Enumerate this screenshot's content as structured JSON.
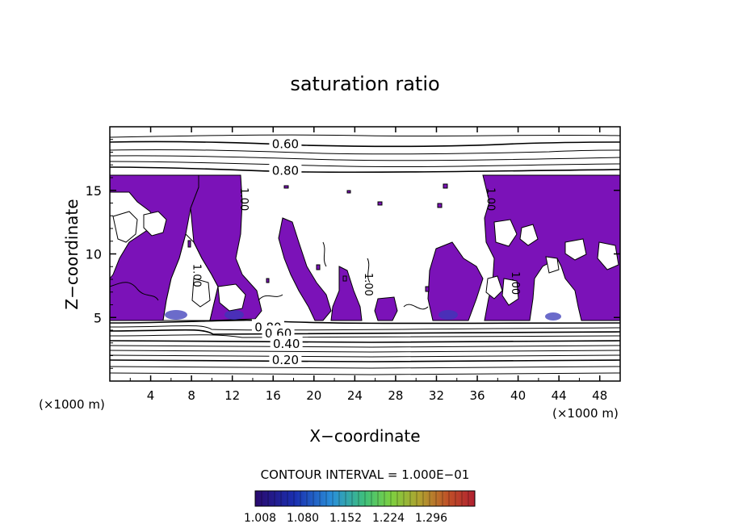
{
  "chart_data": {
    "type": "contour",
    "title": "saturation ratio",
    "xlabel": "X−coordinate",
    "ylabel": "Z−coordinate",
    "x_unit_left": "(×1000 m)",
    "x_unit_right": "(×1000 m)",
    "xlim": [
      0,
      50
    ],
    "ylim": [
      0,
      20
    ],
    "x_ticks": [
      {
        "value": 4,
        "label": "4"
      },
      {
        "value": 8,
        "label": "8"
      },
      {
        "value": 12,
        "label": "12"
      },
      {
        "value": 16,
        "label": "16"
      },
      {
        "value": 20,
        "label": "20"
      },
      {
        "value": 24,
        "label": "24"
      },
      {
        "value": 28,
        "label": "28"
      },
      {
        "value": 32,
        "label": "32"
      },
      {
        "value": 36,
        "label": "36"
      },
      {
        "value": 40,
        "label": "40"
      },
      {
        "value": 44,
        "label": "44"
      },
      {
        "value": 48,
        "label": "48"
      }
    ],
    "y_ticks": [
      {
        "value": 5,
        "label": "5"
      },
      {
        "value": 10,
        "label": "10"
      },
      {
        "value": 15,
        "label": "15"
      }
    ],
    "contour_labels": [
      {
        "text": "0.60",
        "x": 17.2,
        "z": 18.7
      },
      {
        "text": "0.80",
        "x": 17.2,
        "z": 16.6
      },
      {
        "text": "0.80",
        "x": 15.5,
        "z": 4.3
      },
      {
        "text": "0.60",
        "x": 16.5,
        "z": 3.8
      },
      {
        "text": "0.40",
        "x": 17.3,
        "z": 3.0
      },
      {
        "text": "0.20",
        "x": 17.2,
        "z": 1.7
      }
    ],
    "contour_labels_rotated": [
      {
        "text": "1.00",
        "x": 12.8,
        "z": 14.3
      },
      {
        "text": "1.00",
        "x": 8.2,
        "z": 8.3
      },
      {
        "text": "1.00",
        "x": 25.0,
        "z": 7.6
      },
      {
        "text": "1.00",
        "x": 37.0,
        "z": 14.3
      },
      {
        "text": "1.00",
        "x": 39.4,
        "z": 7.7
      }
    ],
    "contour_interval_text": "CONTOUR INTERVAL = 1.000E−01",
    "colorbar": {
      "tick_labels": [
        "1.008",
        "1.080",
        "1.152",
        "1.224",
        "1.296"
      ],
      "colors": [
        "#2a0a6e",
        "#1a2fb0",
        "#2a8fd8",
        "#3fc07a",
        "#7dd040",
        "#b0a030",
        "#c05028",
        "#b02030"
      ]
    },
    "fill_color": "#7b12b8"
  }
}
